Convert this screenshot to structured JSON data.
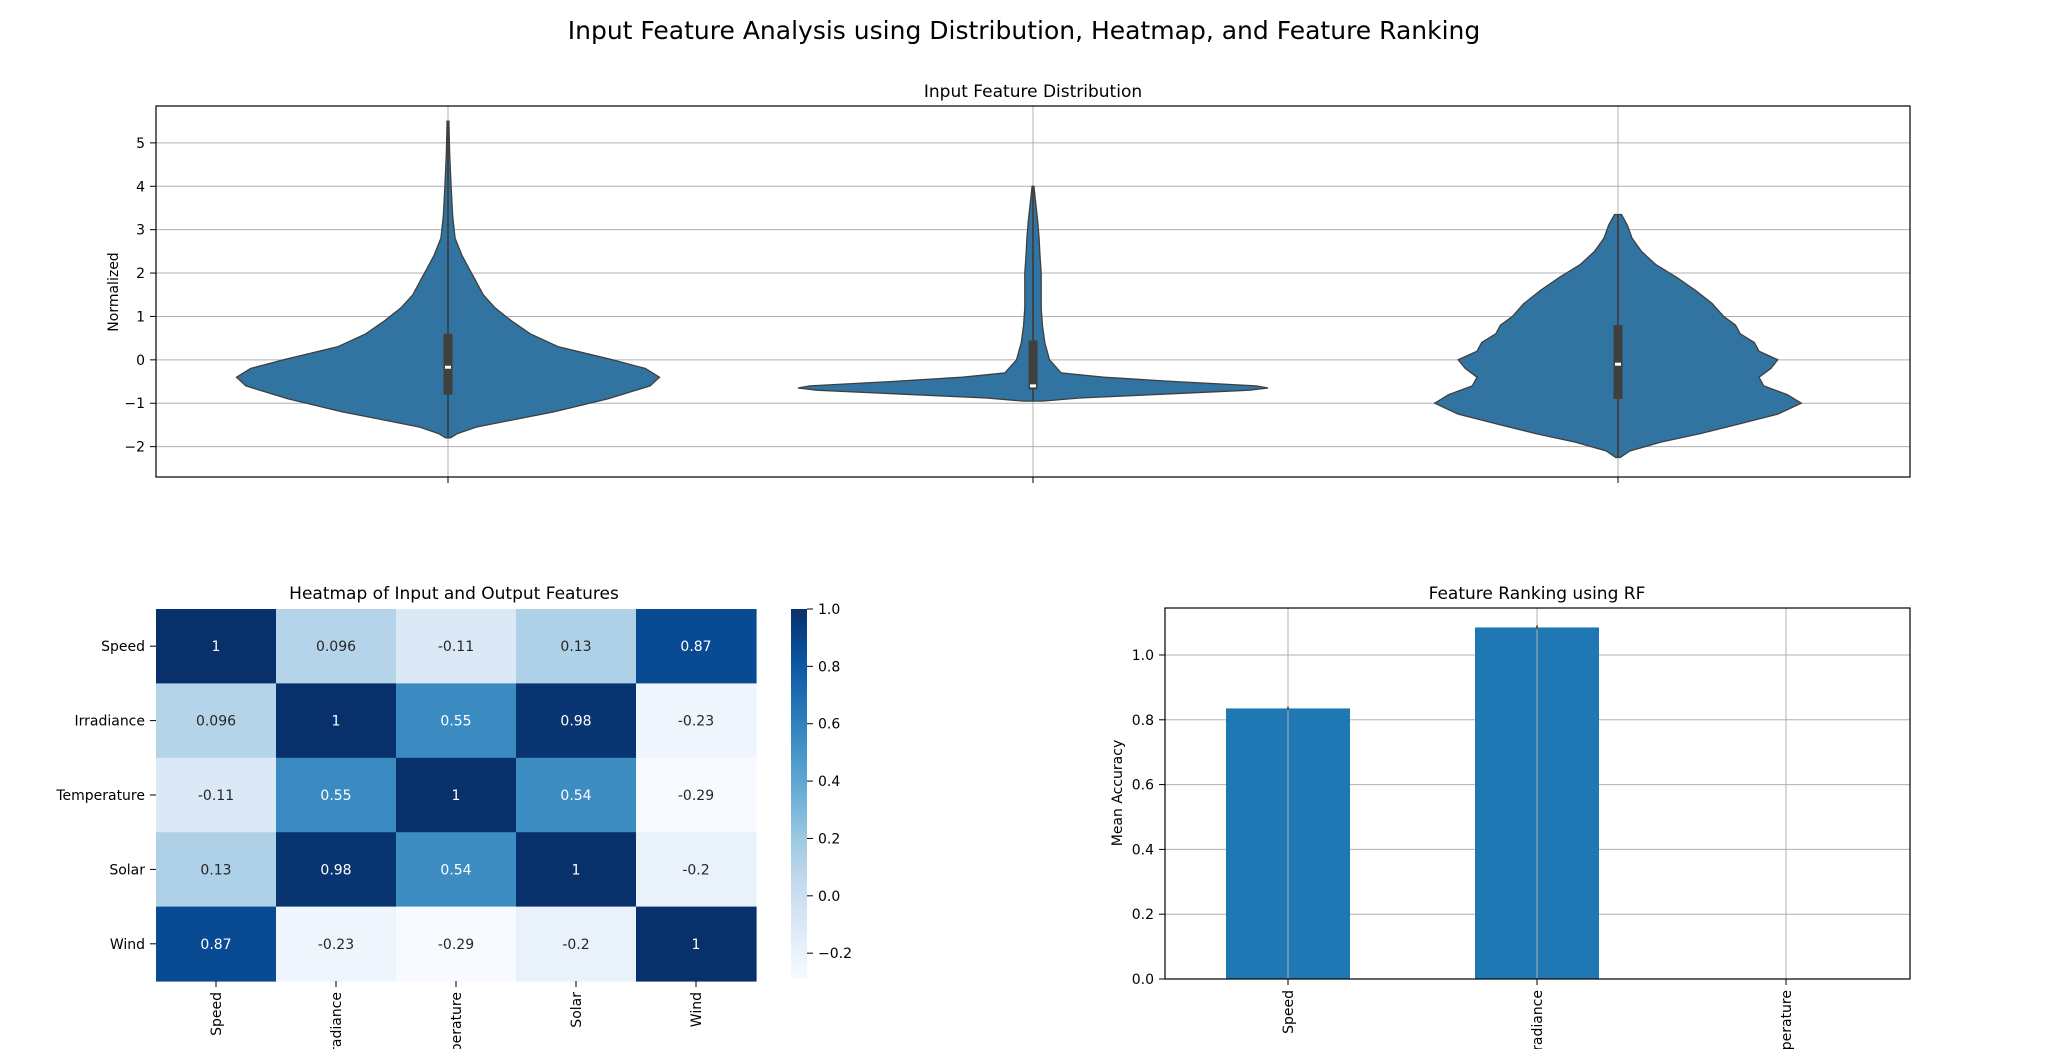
{
  "figure": {
    "title": "Input Feature Analysis using Distribution, Heatmap, and Feature Ranking"
  },
  "chart_data": [
    {
      "type": "violin",
      "title": "Input Feature Distribution",
      "xlabel": "",
      "ylabel": "Normalized",
      "ylim": [
        -2.7,
        5.85
      ],
      "yticks": [
        -2,
        -1,
        0,
        1,
        2,
        3,
        4,
        5
      ],
      "grid": true,
      "color": "#3274a1",
      "series": [
        {
          "whisker": [
            -1.8,
            5.5
          ],
          "box": [
            -0.8,
            0.6
          ],
          "median": -0.17,
          "density": [
            [
              -1.8,
              0.01
            ],
            [
              -1.7,
              0.04
            ],
            [
              -1.55,
              0.12
            ],
            [
              -1.4,
              0.26
            ],
            [
              -1.2,
              0.45
            ],
            [
              -0.9,
              0.68
            ],
            [
              -0.6,
              0.86
            ],
            [
              -0.4,
              0.9
            ],
            [
              -0.2,
              0.84
            ],
            [
              0,
              0.7
            ],
            [
              0.3,
              0.47
            ],
            [
              0.6,
              0.35
            ],
            [
              0.9,
              0.27
            ],
            [
              1.2,
              0.2
            ],
            [
              1.5,
              0.15
            ],
            [
              1.8,
              0.12
            ],
            [
              2.1,
              0.09
            ],
            [
              2.4,
              0.06
            ],
            [
              2.8,
              0.03
            ],
            [
              3.3,
              0.02
            ],
            [
              4,
              0.013
            ],
            [
              4.8,
              0.007
            ],
            [
              5.5,
              0.004
            ]
          ]
        },
        {
          "whisker": [
            -0.95,
            4.0
          ],
          "box": [
            -0.68,
            0.45
          ],
          "median": -0.6,
          "density": [
            [
              -0.95,
              0.04
            ],
            [
              -0.88,
              0.2
            ],
            [
              -0.78,
              0.6
            ],
            [
              -0.7,
              0.92
            ],
            [
              -0.65,
              1.0
            ],
            [
              -0.6,
              0.95
            ],
            [
              -0.5,
              0.6
            ],
            [
              -0.4,
              0.3
            ],
            [
              -0.3,
              0.12
            ],
            [
              0,
              0.07
            ],
            [
              0.4,
              0.05
            ],
            [
              0.8,
              0.04
            ],
            [
              1.2,
              0.035
            ],
            [
              1.6,
              0.035
            ],
            [
              2.0,
              0.035
            ],
            [
              2.4,
              0.03
            ],
            [
              2.8,
              0.026
            ],
            [
              3.2,
              0.02
            ],
            [
              3.6,
              0.012
            ],
            [
              4.0,
              0.004
            ]
          ]
        },
        {
          "whisker": [
            -2.25,
            3.35
          ],
          "box": [
            -0.9,
            0.8
          ],
          "median": -0.1,
          "density": [
            [
              -2.25,
              0.01
            ],
            [
              -2.1,
              0.05
            ],
            [
              -1.9,
              0.18
            ],
            [
              -1.7,
              0.35
            ],
            [
              -1.5,
              0.5
            ],
            [
              -1.25,
              0.68
            ],
            [
              -1.0,
              0.78
            ],
            [
              -0.8,
              0.72
            ],
            [
              -0.6,
              0.62
            ],
            [
              -0.4,
              0.6
            ],
            [
              -0.2,
              0.65
            ],
            [
              0,
              0.68
            ],
            [
              0.2,
              0.6
            ],
            [
              0.4,
              0.58
            ],
            [
              0.6,
              0.52
            ],
            [
              0.8,
              0.5
            ],
            [
              1.0,
              0.45
            ],
            [
              1.3,
              0.4
            ],
            [
              1.6,
              0.33
            ],
            [
              1.9,
              0.25
            ],
            [
              2.2,
              0.16
            ],
            [
              2.5,
              0.1
            ],
            [
              2.8,
              0.06
            ],
            [
              3.1,
              0.04
            ],
            [
              3.35,
              0.015
            ]
          ]
        }
      ]
    },
    {
      "type": "heatmap",
      "title": "Heatmap of Input and Output Features",
      "rows": [
        "Speed",
        "Irradiance",
        "Temperature",
        "Solar",
        "Wind"
      ],
      "cols": [
        "Speed",
        "Irradiance",
        "Temperature",
        "Solar",
        "Wind"
      ],
      "values": [
        [
          1,
          0.096,
          -0.11,
          0.13,
          0.87
        ],
        [
          0.096,
          1,
          0.55,
          0.98,
          -0.23
        ],
        [
          -0.11,
          0.55,
          1,
          0.54,
          -0.29
        ],
        [
          0.13,
          0.98,
          0.54,
          1,
          -0.2
        ],
        [
          0.87,
          -0.23,
          -0.29,
          -0.2,
          1
        ]
      ],
      "labels": [
        [
          "1",
          "0.096",
          "-0.11",
          "0.13",
          "0.87"
        ],
        [
          "0.096",
          "1",
          "0.55",
          "0.98",
          "-0.23"
        ],
        [
          "-0.11",
          "0.55",
          "1",
          "0.54",
          "-0.29"
        ],
        [
          "0.13",
          "0.98",
          "0.54",
          "1",
          "-0.2"
        ],
        [
          "0.87",
          "-0.23",
          "-0.29",
          "-0.2",
          "1"
        ]
      ],
      "colormap": "Blues",
      "vmin": -0.29,
      "vmax": 1.0,
      "colorbar_ticks": [
        1.0,
        0.8,
        0.6,
        0.4,
        0.2,
        0.0,
        -0.2
      ],
      "colorbar_tick_labels": [
        "1.0",
        "0.8",
        "0.6",
        "0.4",
        "0.2",
        "0.0",
        "−0.2"
      ]
    },
    {
      "type": "bar",
      "title": "Feature Ranking using RF",
      "xlabel": "",
      "ylabel": "Mean Accuracy",
      "categories": [
        "Speed",
        "Irradiance",
        "Temperature"
      ],
      "values": [
        0.835,
        1.085,
        0
      ],
      "errors": [
        0.005,
        0.006,
        0
      ],
      "ylim": [
        0,
        1.145
      ],
      "yticks": [
        0.0,
        0.2,
        0.4,
        0.6,
        0.8,
        1.0
      ],
      "ytick_labels": [
        "0.0",
        "0.2",
        "0.4",
        "0.6",
        "0.8",
        "1.0"
      ],
      "grid": true,
      "color": "#1f77b4"
    }
  ]
}
